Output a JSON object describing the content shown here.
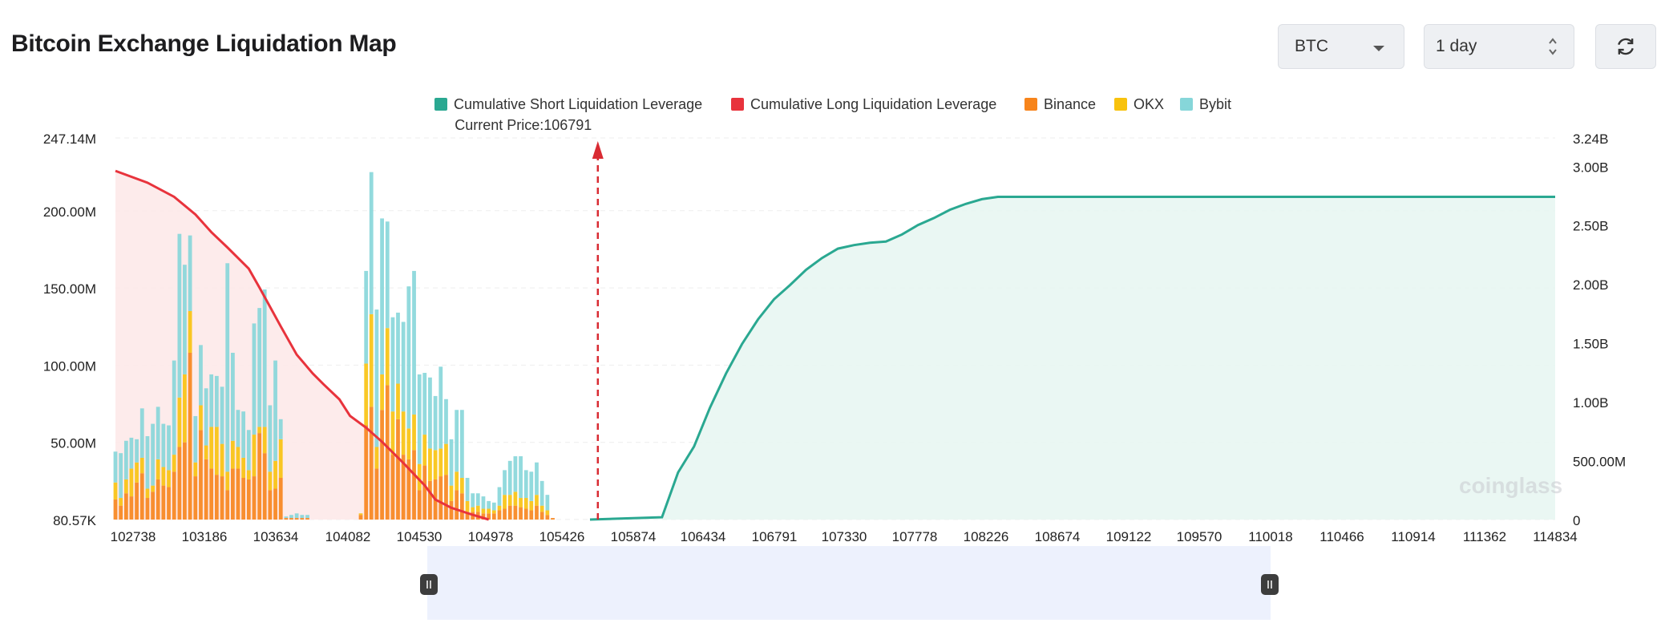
{
  "header": {
    "title": "Bitcoin Exchange Liquidation Map"
  },
  "controls": {
    "coin": "BTC",
    "range": "1 day",
    "refresh_icon": "refresh-icon"
  },
  "watermark": "coinglass",
  "colors": {
    "short": "#2aa891",
    "long": "#e8333c",
    "binance": "#f7841b",
    "okx": "#f8c20d",
    "bybit": "#86d6d9",
    "shortFill": "#e6f6f1",
    "longFill": "#fde7e8",
    "current": "#d92b33"
  },
  "chart_data": {
    "type": "bar",
    "title": "",
    "current_price_label": "Current Price:106791",
    "current_price": 106791,
    "legend": [
      "Cumulative Short Liquidation Leverage",
      "Cumulative Long Liquidation Leverage",
      "Binance",
      "OKX",
      "Bybit"
    ],
    "x_tick_labels": [
      "102738",
      "103186",
      "103634",
      "104082",
      "104530",
      "104978",
      "105426",
      "105874",
      "106434",
      "106791",
      "107330",
      "107778",
      "108226",
      "108674",
      "109122",
      "109570",
      "110018",
      "110466",
      "110914",
      "111362",
      "114834"
    ],
    "y_left_tick_labels": [
      "80.57K",
      "50.00M",
      "100.00M",
      "150.00M",
      "200.00M",
      "247.14M"
    ],
    "y_left_ticks": [
      0.08057,
      50,
      100,
      150,
      200,
      247.14
    ],
    "y_left_range": [
      0,
      247.14
    ],
    "y_right_tick_labels": [
      "0",
      "500.00M",
      "1.00B",
      "1.50B",
      "2.00B",
      "2.50B",
      "3.00B",
      "3.24B"
    ],
    "y_right_ticks": [
      0,
      0.5,
      1.0,
      1.5,
      2.0,
      2.5,
      3.0,
      3.24
    ],
    "y_right_range": [
      0,
      3.24
    ],
    "left_unit": "M USD",
    "right_unit": "B USD",
    "bar_step": 44.8,
    "x_range": [
      102738,
      114834
    ],
    "bars": [
      {
        "x": 102738,
        "binance": 13,
        "okx": 11,
        "bybit": 20
      },
      {
        "x": 102783,
        "binance": 9,
        "okx": 5,
        "bybit": 29
      },
      {
        "x": 102828,
        "binance": 17,
        "okx": 9,
        "bybit": 25
      },
      {
        "x": 102872,
        "binance": 15,
        "okx": 18,
        "bybit": 20
      },
      {
        "x": 102917,
        "binance": 24,
        "okx": 13,
        "bybit": 15
      },
      {
        "x": 102962,
        "binance": 30,
        "okx": 10,
        "bybit": 32
      },
      {
        "x": 103007,
        "binance": 14,
        "okx": 6,
        "bybit": 34
      },
      {
        "x": 103052,
        "binance": 18,
        "okx": 4,
        "bybit": 40
      },
      {
        "x": 103096,
        "binance": 26,
        "okx": 13,
        "bybit": 34
      },
      {
        "x": 103141,
        "binance": 22,
        "okx": 12,
        "bybit": 28
      },
      {
        "x": 103186,
        "binance": 21,
        "okx": 11,
        "bybit": 29
      },
      {
        "x": 103231,
        "binance": 31,
        "okx": 11,
        "bybit": 61
      },
      {
        "x": 103276,
        "binance": 47,
        "okx": 32,
        "bybit": 106
      },
      {
        "x": 103320,
        "binance": 50,
        "okx": 44,
        "bybit": 71
      },
      {
        "x": 103365,
        "binance": 108,
        "okx": 27,
        "bybit": 49
      },
      {
        "x": 103410,
        "binance": 28,
        "okx": 9,
        "bybit": 30
      },
      {
        "x": 103455,
        "binance": 58,
        "okx": 16,
        "bybit": 39
      },
      {
        "x": 103500,
        "binance": 39,
        "okx": 9,
        "bybit": 37
      },
      {
        "x": 103544,
        "binance": 33,
        "okx": 27,
        "bybit": 34
      },
      {
        "x": 103589,
        "binance": 29,
        "okx": 31,
        "bybit": 33
      },
      {
        "x": 103634,
        "binance": 28,
        "okx": 21,
        "bybit": 37
      },
      {
        "x": 103679,
        "binance": 19,
        "okx": 12,
        "bybit": 135
      },
      {
        "x": 103724,
        "binance": 33,
        "okx": 18,
        "bybit": 57
      },
      {
        "x": 103768,
        "binance": 33,
        "okx": 14,
        "bybit": 24
      },
      {
        "x": 103813,
        "binance": 27,
        "okx": 13,
        "bybit": 30
      },
      {
        "x": 103858,
        "binance": 26,
        "okx": 6,
        "bybit": 26
      },
      {
        "x": 103903,
        "binance": 28,
        "okx": 27,
        "bybit": 72
      },
      {
        "x": 103948,
        "binance": 56,
        "okx": 4,
        "bybit": 77
      },
      {
        "x": 103992,
        "binance": 43,
        "okx": 17,
        "bybit": 89
      },
      {
        "x": 104037,
        "binance": 19,
        "okx": 12,
        "bybit": 43
      },
      {
        "x": 104082,
        "binance": 20,
        "okx": 18,
        "bybit": 65
      },
      {
        "x": 104127,
        "binance": 27,
        "okx": 25,
        "bybit": 13
      },
      {
        "x": 104172,
        "binance": 1,
        "okx": 0,
        "bybit": 1
      },
      {
        "x": 104216,
        "binance": 1,
        "okx": 0,
        "bybit": 2
      },
      {
        "x": 104261,
        "binance": 1,
        "okx": 0,
        "bybit": 3
      },
      {
        "x": 104306,
        "binance": 1,
        "okx": 0,
        "bybit": 2
      },
      {
        "x": 104351,
        "binance": 1,
        "okx": 0,
        "bybit": 2
      },
      {
        "x": 104396,
        "binance": 0,
        "okx": 0,
        "bybit": 0
      },
      {
        "x": 104440,
        "binance": 0,
        "okx": 0,
        "bybit": 0
      },
      {
        "x": 104485,
        "binance": 0,
        "okx": 0,
        "bybit": 0
      },
      {
        "x": 104530,
        "binance": 0,
        "okx": 0,
        "bybit": 0
      },
      {
        "x": 104575,
        "binance": 0,
        "okx": 0,
        "bybit": 0
      },
      {
        "x": 104620,
        "binance": 0,
        "okx": 0,
        "bybit": 0
      },
      {
        "x": 104664,
        "binance": 0,
        "okx": 0,
        "bybit": 0
      },
      {
        "x": 104709,
        "binance": 0,
        "okx": 0,
        "bybit": 0
      },
      {
        "x": 104754,
        "binance": 0,
        "okx": 0,
        "bybit": 0
      },
      {
        "x": 104799,
        "binance": 3,
        "okx": 1,
        "bybit": 0
      },
      {
        "x": 104844,
        "binance": 61,
        "okx": 40,
        "bybit": 60
      },
      {
        "x": 104888,
        "binance": 73,
        "okx": 60,
        "bybit": 92
      },
      {
        "x": 104933,
        "binance": 33,
        "okx": 14,
        "bybit": 89
      },
      {
        "x": 104978,
        "binance": 71,
        "okx": 23,
        "bybit": 101
      },
      {
        "x": 105023,
        "binance": 87,
        "okx": 37,
        "bybit": 69
      },
      {
        "x": 105068,
        "binance": 42,
        "okx": 28,
        "bybit": 61
      },
      {
        "x": 105112,
        "binance": 65,
        "okx": 23,
        "bybit": 46
      },
      {
        "x": 105157,
        "binance": 42,
        "okx": 28,
        "bybit": 58
      },
      {
        "x": 105202,
        "binance": 39,
        "okx": 20,
        "bybit": 92
      },
      {
        "x": 105247,
        "binance": 45,
        "okx": 23,
        "bybit": 93
      },
      {
        "x": 105292,
        "binance": 19,
        "okx": 17,
        "bybit": 58
      },
      {
        "x": 105336,
        "binance": 35,
        "okx": 20,
        "bybit": 40
      },
      {
        "x": 105381,
        "binance": 25,
        "okx": 21,
        "bybit": 46
      },
      {
        "x": 105426,
        "binance": 26,
        "okx": 19,
        "bybit": 35
      },
      {
        "x": 105471,
        "binance": 28,
        "okx": 18,
        "bybit": 53
      },
      {
        "x": 105516,
        "binance": 29,
        "okx": 20,
        "bybit": 29
      },
      {
        "x": 105560,
        "binance": 12,
        "okx": 10,
        "bybit": 30
      },
      {
        "x": 105605,
        "binance": 19,
        "okx": 12,
        "bybit": 40
      },
      {
        "x": 105650,
        "binance": 17,
        "okx": 10,
        "bybit": 44
      },
      {
        "x": 105695,
        "binance": 5,
        "okx": 7,
        "bybit": 15
      },
      {
        "x": 105740,
        "binance": 5,
        "okx": 3,
        "bybit": 9
      },
      {
        "x": 105784,
        "binance": 5,
        "okx": 4,
        "bybit": 8
      },
      {
        "x": 105829,
        "binance": 4,
        "okx": 3,
        "bybit": 8
      },
      {
        "x": 105874,
        "binance": 4,
        "okx": 3,
        "bybit": 5
      },
      {
        "x": 105919,
        "binance": 4,
        "okx": 2,
        "bybit": 5
      },
      {
        "x": 105964,
        "binance": 6,
        "okx": 3,
        "bybit": 12
      },
      {
        "x": 106008,
        "binance": 7,
        "okx": 9,
        "bybit": 16
      },
      {
        "x": 106053,
        "binance": 9,
        "okx": 7,
        "bybit": 22
      },
      {
        "x": 106098,
        "binance": 9,
        "okx": 9,
        "bybit": 23
      },
      {
        "x": 106143,
        "binance": 8,
        "okx": 6,
        "bybit": 27
      },
      {
        "x": 106188,
        "binance": 7,
        "okx": 7,
        "bybit": 18
      },
      {
        "x": 106232,
        "binance": 6,
        "okx": 6,
        "bybit": 19
      },
      {
        "x": 106277,
        "binance": 9,
        "okx": 7,
        "bybit": 21
      },
      {
        "x": 106322,
        "binance": 5,
        "okx": 4,
        "bybit": 16
      },
      {
        "x": 106367,
        "binance": 3,
        "okx": 3,
        "bybit": 10
      },
      {
        "x": 106412,
        "binance": 1,
        "okx": 0,
        "bybit": 0
      },
      {
        "x": 106456,
        "binance": 0,
        "okx": 0,
        "bybit": 0
      },
      {
        "x": 106501,
        "binance": 0,
        "okx": 0,
        "bybit": 0
      },
      {
        "x": 106546,
        "binance": 0,
        "okx": 0,
        "bybit": 0
      },
      {
        "x": 106591,
        "binance": 0,
        "okx": 0,
        "bybit": 0
      },
      {
        "x": 106636,
        "binance": 0,
        "okx": 0,
        "bybit": 0
      },
      {
        "x": 106680,
        "binance": 0,
        "okx": 0,
        "bybit": 0
      },
      {
        "x": 106725,
        "binance": 0,
        "okx": 0,
        "bybit": 0
      },
      {
        "x": 106770,
        "binance": 0,
        "okx": 0,
        "bybit": 0
      }
    ],
    "long_cumulative_B": [
      2.96,
      2.86,
      2.74,
      2.59,
      2.44,
      2.31,
      2.13,
      1.97,
      1.64,
      1.4,
      1.24,
      1.15,
      1.02,
      0.88,
      0.78,
      0.66,
      0.48,
      0.29,
      0.17,
      0.1,
      0.04,
      0.0
    ],
    "long_cumulative_x": [
      102738,
      103007,
      103231,
      103410,
      103544,
      103679,
      103858,
      103948,
      104127,
      104261,
      104396,
      104485,
      104620,
      104709,
      104844,
      104978,
      105157,
      105336,
      105426,
      105560,
      105740,
      105874
    ],
    "short_cumulative_B": [
      0.0,
      0.02,
      0.4,
      0.62,
      0.95,
      1.24,
      1.49,
      1.7,
      1.87,
      1.99,
      2.12,
      2.22,
      2.3,
      2.33,
      2.35,
      2.36,
      2.42,
      2.5,
      2.56,
      2.63,
      2.68,
      2.72,
      2.74,
      2.74
    ],
    "short_cumulative_x": [
      106725,
      107330,
      107465,
      107599,
      107733,
      107868,
      108002,
      108137,
      108271,
      108405,
      108540,
      108674,
      108808,
      108943,
      109077,
      109211,
      109346,
      109480,
      109615,
      109749,
      109883,
      110018,
      110152,
      114834
    ]
  }
}
